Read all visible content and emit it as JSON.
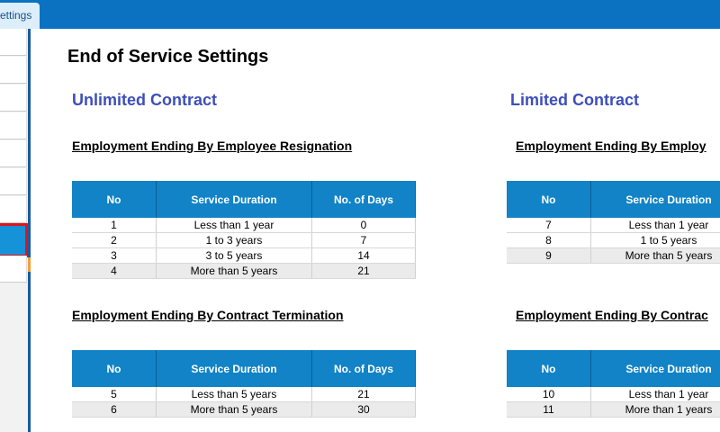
{
  "tab": "ettings",
  "title": "End of Service Settings",
  "sections": [
    {
      "heading": "Unlimited Contract",
      "tables": [
        {
          "caption": "Employment Ending By Employee Resignation",
          "columns": [
            "No",
            "Service Duration",
            "No. of Days"
          ],
          "rows": [
            [
              1,
              "Less than 1 year",
              0
            ],
            [
              2,
              "1 to 3 years",
              7
            ],
            [
              3,
              "3 to 5 years",
              14
            ],
            [
              4,
              "More than 5 years",
              21
            ]
          ]
        },
        {
          "caption": "Employment Ending By Contract Termination",
          "columns": [
            "No",
            "Service Duration",
            "No. of Days"
          ],
          "rows": [
            [
              5,
              "Less than 5 years",
              21
            ],
            [
              6,
              "More than 5 years",
              30
            ]
          ]
        }
      ]
    },
    {
      "heading": "Limited Contract",
      "tables": [
        {
          "caption": "Employment Ending By Employ",
          "columns": [
            "No",
            "Service Duration"
          ],
          "rows": [
            [
              7,
              "Less than 1 year"
            ],
            [
              8,
              "1 to 5 years"
            ],
            [
              9,
              "More than 5 years"
            ]
          ]
        },
        {
          "caption": "Employment Ending By Contrac",
          "columns": [
            "No",
            "Service Duration"
          ],
          "rows": [
            [
              10,
              "Less than 1 year"
            ],
            [
              11,
              "More than 1 years"
            ]
          ]
        }
      ]
    }
  ]
}
